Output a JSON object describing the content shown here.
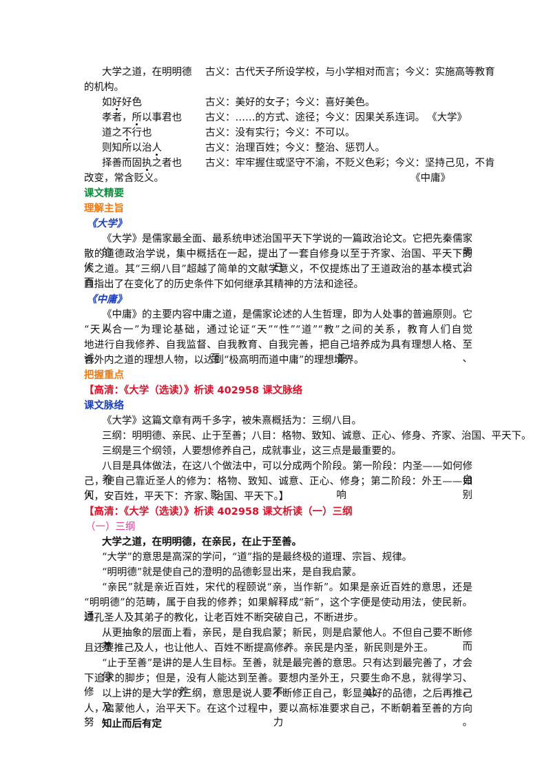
{
  "vocab": [
    {
      "term_parts": [
        "大学之道，在明明德"
      ],
      "dotted": [],
      "gloss": "古义：古代天子所设学校，与小学相对而言；今义：实施高等教育",
      "gloss_cont": "的机构。",
      "source": ""
    },
    {
      "term_parts": [
        "如",
        "好",
        "好色"
      ],
      "dotted": [
        1
      ],
      "gloss": "古义：美好的女子；今义：喜好美色。",
      "source": ""
    },
    {
      "term_parts": [
        "孝者，",
        "所",
        "以事君也"
      ],
      "dotted": [
        1
      ],
      "gloss": "古义：……的方式、途径；今义：因果关系连词。",
      "source": "《大学》"
    },
    {
      "term_parts": [
        "道之",
        "不",
        "行也"
      ],
      "dotted": [
        1
      ],
      "gloss": "古义：没有实行；今义：不可以。",
      "source": ""
    },
    {
      "term_parts": [
        "则知所以治",
        "人"
      ],
      "dotted": [
        1
      ],
      "gloss": "古义：治理百姓；今义：整治、惩罚人。",
      "source": ""
    },
    {
      "term_parts": [
        "择善而固",
        "执",
        "之者也"
      ],
      "dotted": [
        1
      ],
      "gloss": "古义：牢牢握住或坚守不渝，不贬义色彩；今义：坚持己见，不肯",
      "gloss_cont": "改变，常含贬义。",
      "source": "《中庸》"
    }
  ],
  "sections": {
    "kewen_jingyao": "课文精要",
    "lijie_zhuzhi": "理解主旨",
    "daxue_title": "《大学》",
    "daxue_para": [
      "《大学》是儒家最全面、最系统申述治国平天下学说的一篇政治论文。它把先秦儒家的零",
      "散的道德政治学说，集中概括在一起，提出了一套自修身以至于齐家、治国、平天下的修己治",
      "人之道。其“三纲八目”超越了简单的文献学意义，不仅提炼出了王道政治的基本模式，而",
      "且指出了在变化了的历史条件下如何继承其精神的方法和途径。"
    ],
    "zhongyong_title": "《中庸》",
    "zhongyong_para": [
      "《中庸》的主要内容中庸之道，是儒家论述的人生哲理，即为人处事的普遍原则。它以",
      "“天人合一”为理论基础，通过论证“天”“性”“道”“教”之间的关系，教育人们自觉",
      "地进行自我修养、自我监督、自我教育、自我完善，把自己培养成为具有理想人格、至诚至善、",
      "合外内之道的理想人物，以达到“极高明而道中庸”的理想境界。"
    ],
    "bawo_zhongdian": "把握重点",
    "video1": "【高清：《大学（选读）》析读 402958 课文脉络",
    "kewen_mailuo": "课文脉络",
    "mailuo_paras": [
      "《大学》这篇文章有两千多字，被朱熹概括为：三纲八目。",
      "三纲：明明德、亲民、止于至善；八目：格物、致知、诚意、正心、修身、齐家、治国、平天下。",
      "三纲是三个纲领，人要想修养自己，成就事业，这三点是最重要的。"
    ],
    "bamu_para": [
      "八目是具体做法，在这八个做法中，可以分成两个阶段。第一阶段：内圣——如何修养自",
      "己，使自己靠近圣人的修为：格物、致知、诚意、正心、修身；第二阶段：外王——如何影响别",
      "人，安百姓，平天下：齐家、治国、平天下。】"
    ],
    "video2": "【高清：《大学（选读）》析读 402958 课文析读（一）三纲",
    "sangang_title": "（一）三纲",
    "sangang_quote": "大学之道，在明明德，在亲民，在止于至善。",
    "analysis": [
      "“大学”的意思是高深的学问，“道”指的是最终极的道理、宗旨、规律。",
      "“明明德”就是使自己的澄明的品德彰显出来，是自我启蒙。"
    ],
    "qinmin_para": [
      "“亲民”就是亲近百姓，宋代的程颐说“亲，当作新”。如果是亲近百姓的意思，还是",
      "“明明德”的范畴，属于自我的修养；如果解释成“新”，这个字便是使动用法，使民新。通",
      "过孔圣人及其弟子的教化，让老百姓不断突破自己，不断进步。"
    ],
    "chouxiang_para": [
      "从更抽象的层面上看，亲民，是自我启蒙；新民，则是启蒙他人。不但自己要不断修养，而",
      "且还要推己及人，也让他人、百姓不断提高修养。亲民是内圣，新民则是外王。"
    ],
    "zhishan_para": [
      "“止于至善”是讲的是人生目标。至善，就是最完善的意思。只有达到最完善了，才会停",
      "下追求的脚步；但是，没有人能达到至善。要想内圣外王，只要生命不息，就得学习、修养不止。"
    ],
    "summary_para": [
      "以上讲的是大学的三纲，意思是说人要不断修正自己，彰显美好的品德，之后再推己及",
      "人，启蒙他人，治平天下。在这个过程中，要以高标准要求自己，不断朝着至善的方向努力。"
    ],
    "zhizhi_title": "知止而后有定"
  }
}
